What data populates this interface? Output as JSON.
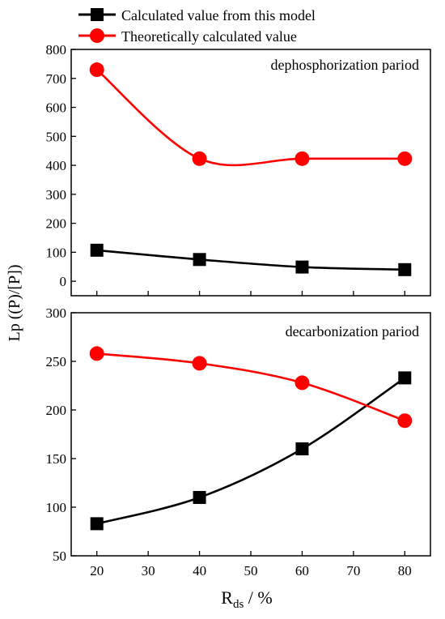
{
  "legend": {
    "items": [
      {
        "label": "Calculated value from this model",
        "color": "#000000",
        "marker": "square-marker"
      },
      {
        "label": "Theoretically calculated value",
        "color": "#ff0000",
        "marker": "circle-marker"
      }
    ]
  },
  "y_axis_label": "Lp ((P)/[P])",
  "x_axis_label": {
    "main": "R",
    "subscript": "ds",
    "unit": " / %"
  },
  "chart_data": [
    {
      "type": "line",
      "annotation": "dephosphorization pariod",
      "x": [
        20,
        40,
        60,
        80
      ],
      "xlim": [
        15,
        85
      ],
      "xticks": [
        20,
        30,
        40,
        50,
        60,
        70,
        80
      ],
      "ylim": [
        -50,
        800
      ],
      "yticks": [
        0,
        100,
        200,
        300,
        400,
        500,
        600,
        700,
        800
      ],
      "grid": false,
      "legend_position": "top-left",
      "series": [
        {
          "name": "Calculated value from this model",
          "color": "#000000",
          "values": [
            107,
            75,
            49,
            40
          ]
        },
        {
          "name": "Theoretically calculated value",
          "color": "#ff0000",
          "values": [
            730,
            423,
            423,
            423
          ]
        }
      ]
    },
    {
      "type": "line",
      "annotation": "decarbonization pariod",
      "x": [
        20,
        40,
        60,
        80
      ],
      "xlim": [
        15,
        85
      ],
      "xticks": [
        20,
        30,
        40,
        50,
        60,
        70,
        80
      ],
      "ylim": [
        50,
        300
      ],
      "yticks": [
        50,
        100,
        150,
        200,
        250,
        300
      ],
      "grid": false,
      "series": [
        {
          "name": "Calculated value from this model",
          "color": "#000000",
          "values": [
            83,
            110,
            160,
            233
          ]
        },
        {
          "name": "Theoretically calculated value",
          "color": "#ff0000",
          "values": [
            258,
            248,
            228,
            189
          ]
        }
      ]
    }
  ]
}
